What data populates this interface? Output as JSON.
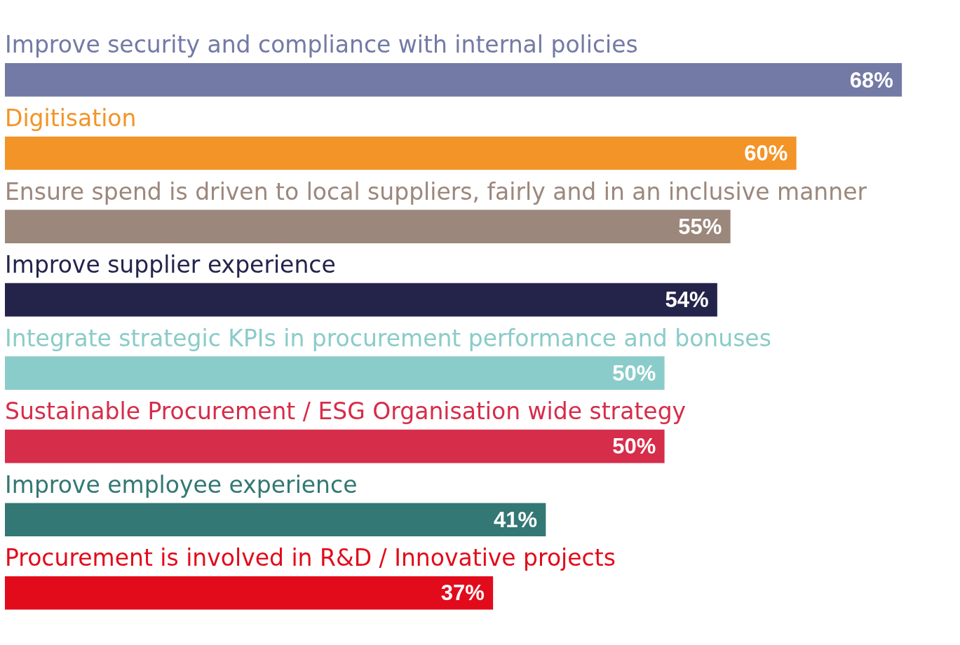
{
  "chart_data": {
    "type": "bar",
    "orientation": "horizontal",
    "categories": [
      "Improve security and compliance with internal policies",
      "Digitisation",
      "Ensure spend is driven to local suppliers, fairly and in an inclusive manner",
      "Improve supplier experience",
      "Integrate strategic KPIs in procurement performance and bonuses",
      "Sustainable Procurement / ESG Organisation wide strategy",
      "Improve employee experience",
      "Procurement is involved in R&D / Innovative projects"
    ],
    "values": [
      68,
      60,
      55,
      54,
      50,
      50,
      41,
      37
    ],
    "value_labels": [
      "68%",
      "60%",
      "55%",
      "54%",
      "50%",
      "50%",
      "41%",
      "37%"
    ],
    "colors": [
      "#737aa5",
      "#f39428",
      "#9c877c",
      "#24244b",
      "#8accc9",
      "#d62d4a",
      "#337874",
      "#e20b1b"
    ],
    "xlim": [
      0,
      72
    ],
    "data_labels": true,
    "tick_labels": false,
    "grid": false
  }
}
